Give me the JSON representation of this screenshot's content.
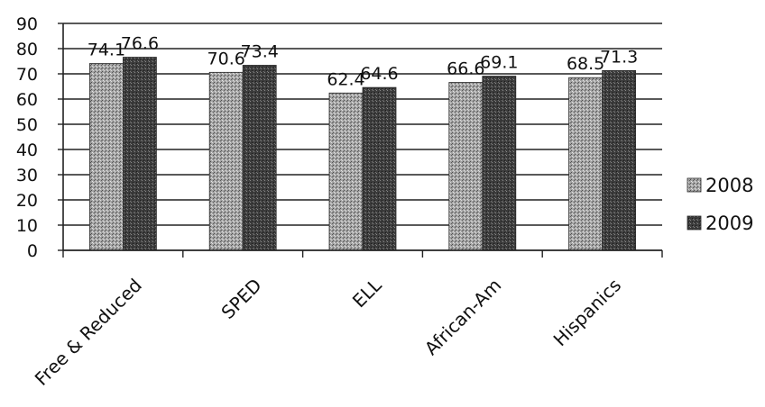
{
  "chart_data": {
    "type": "bar",
    "title": "",
    "xlabel": "",
    "ylabel": "",
    "categories": [
      "Free & Reduced",
      "SPED",
      "ELL",
      "African-Am",
      "Hispanics"
    ],
    "series": [
      {
        "name": "2008",
        "values": [
          74.1,
          70.6,
          62.4,
          66.6,
          68.5
        ],
        "color": "#9a9a9a",
        "value_labels": [
          "74.1",
          "70.6",
          "62.4",
          "66.6",
          "68.5"
        ]
      },
      {
        "name": "2009",
        "values": [
          76.6,
          73.4,
          64.6,
          69.1,
          71.3
        ],
        "color": "#3a3a3a",
        "value_labels": [
          "76.6",
          "73.4",
          "64.6",
          "69.1",
          "71.3"
        ]
      }
    ],
    "ylim": [
      0,
      90
    ],
    "yticks": [
      0,
      10,
      20,
      30,
      40,
      50,
      60,
      70,
      80,
      90
    ],
    "grid": true,
    "legend": "right"
  }
}
